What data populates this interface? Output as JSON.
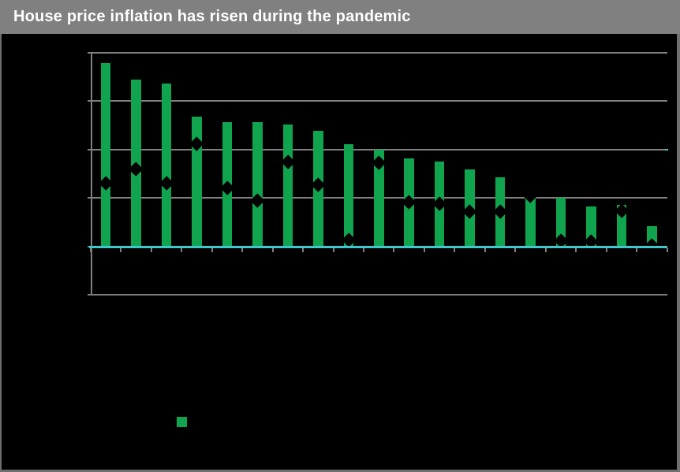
{
  "header": {
    "title": "House price inflation has risen during the pandemic",
    "bg_color": "#808080",
    "text_color": "#ffffff"
  },
  "window": {
    "background_color": "#000000",
    "border_color": "#6f6f6f"
  },
  "chart_data": {
    "type": "bar",
    "title": "House price inflation has risen during the pandemic",
    "xlabel": "",
    "ylabel": "",
    "ylim": [
      -5,
      20
    ],
    "gridline_step": 5,
    "gridline_values": [
      20,
      15,
      10,
      5,
      -5
    ],
    "grid": "horizontal",
    "axis_labels_visible": false,
    "n_categories": 19,
    "categories": [
      "",
      "",
      "",
      "",
      "",
      "",
      "",
      "",
      "",
      "",
      "",
      "",
      "",
      "",
      "",
      "",
      "",
      "",
      ""
    ],
    "series": [
      {
        "name": "bar-series",
        "type": "bar",
        "color": "#10a44e",
        "values": [
          18.9,
          17.2,
          16.8,
          13.4,
          12.8,
          12.8,
          12.6,
          11.9,
          10.5,
          10.0,
          9.1,
          8.7,
          7.9,
          7.1,
          5.4,
          5.0,
          4.1,
          4.3,
          2.1
        ]
      },
      {
        "name": "diamond-marker-series",
        "type": "scatter",
        "marker": "diamond",
        "color": "#000000",
        "values": [
          6.5,
          8.0,
          6.5,
          10.6,
          6.0,
          4.7,
          8.7,
          6.4,
          0.7,
          8.6,
          4.6,
          4.4,
          3.6,
          3.6,
          5.2,
          0.6,
          0.5,
          3.7,
          0.1
        ]
      }
    ],
    "zero_line": {
      "value": 0,
      "color": "#3fc8cc"
    },
    "gridline_color": "#7f7f7f",
    "axis_color": "#7f7f7f",
    "legend": {
      "position": "below-plot-left",
      "entries": [
        {
          "marker": "square",
          "color": "#10a44e",
          "label": ""
        }
      ]
    }
  }
}
